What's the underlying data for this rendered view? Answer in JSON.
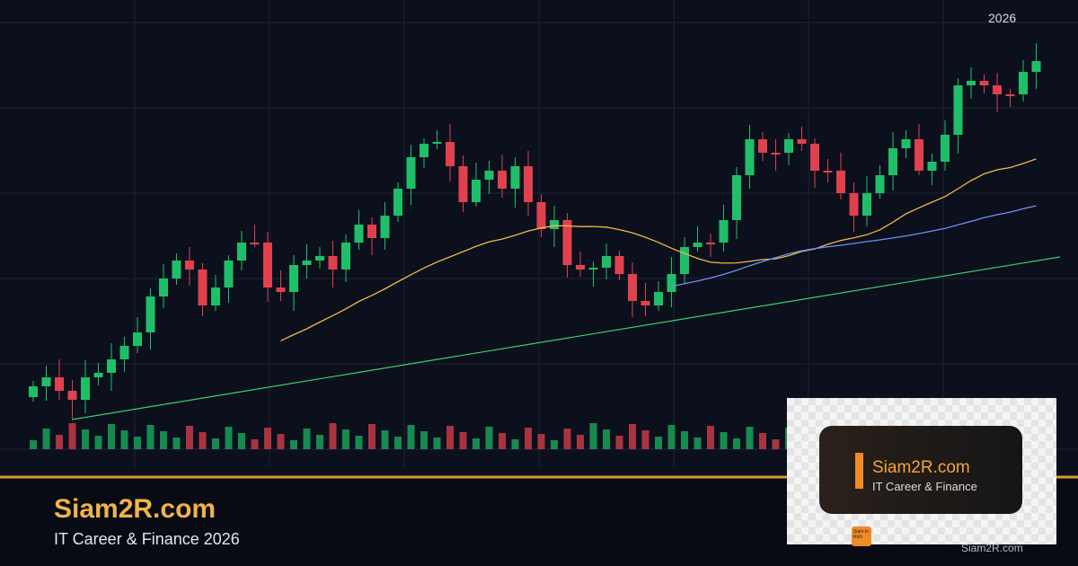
{
  "chart_label": "2026",
  "brand": {
    "title": "Siam2R.com",
    "subtitle": "IT Career & Finance 2026"
  },
  "card": {
    "title": "Siam2R.com",
    "subtitle": "IT Career & Finance",
    "logo": "Siam to Rich",
    "footer": "Siam2R.com"
  }
}
